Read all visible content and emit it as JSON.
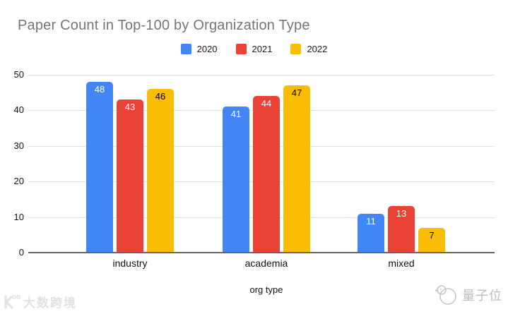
{
  "title": "Paper Count in Top-100 by Organization Type",
  "chart_data": {
    "type": "bar",
    "title": "Paper Count in Top-100 by Organization Type",
    "xlabel": "org type",
    "ylabel": "",
    "ylim": [
      0,
      50
    ],
    "yticks": [
      0,
      10,
      20,
      30,
      40,
      50
    ],
    "grid": true,
    "legend_position": "top-center",
    "categories": [
      "industry",
      "academia",
      "mixed"
    ],
    "series": [
      {
        "name": "2020",
        "color": "#4285F4",
        "label_color": "#ffffff",
        "values": [
          48,
          41,
          11
        ]
      },
      {
        "name": "2021",
        "color": "#EA4335",
        "label_color": "#ffffff",
        "values": [
          43,
          44,
          13
        ]
      },
      {
        "name": "2022",
        "color": "#FBBC04",
        "label_color": "#000000",
        "values": [
          46,
          47,
          7
        ]
      }
    ]
  },
  "colors": {
    "title_text": "#757575",
    "axis_text": "#111111",
    "gridline": "#e2e2e2",
    "baseline": "#666666"
  },
  "watermarks": {
    "bottom_left": "大数跨境",
    "bottom_right": "量子位"
  }
}
